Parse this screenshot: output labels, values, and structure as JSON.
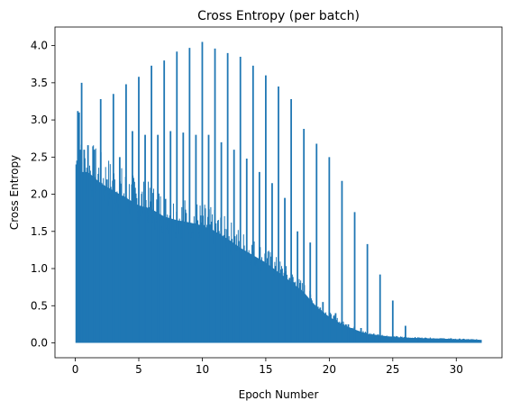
{
  "chart_data": {
    "type": "line",
    "title": "Cross Entropy (per batch)",
    "xlabel": "Epoch Number",
    "ylabel": "Cross Entropy",
    "xlim": [
      -1.6,
      33.6
    ],
    "ylim": [
      -0.2,
      4.25
    ],
    "xticks": [
      0,
      5,
      10,
      15,
      20,
      25,
      30
    ],
    "yticks": [
      0.0,
      0.5,
      1.0,
      1.5,
      2.0,
      2.5,
      3.0,
      3.5,
      4.0
    ],
    "ytick_labels": [
      "0.0",
      "0.5",
      "1.0",
      "1.5",
      "2.0",
      "2.5",
      "3.0",
      "3.5",
      "4.0"
    ],
    "grid": false,
    "line_color": "#1f77b4",
    "x_max": 32,
    "epoch_spikes": [
      {
        "x": 0.1,
        "y": 2.35
      },
      {
        "x": 0.2,
        "y": 3.12
      },
      {
        "x": 0.3,
        "y": 3.1
      },
      {
        "x": 0.4,
        "y": 2.6
      },
      {
        "x": 0.5,
        "y": 3.5
      },
      {
        "x": 0.7,
        "y": 2.6
      },
      {
        "x": 1,
        "y": 2.66
      },
      {
        "x": 1.5,
        "y": 2.6
      },
      {
        "x": 2,
        "y": 3.28
      },
      {
        "x": 2.5,
        "y": 2.2
      },
      {
        "x": 3,
        "y": 3.35
      },
      {
        "x": 3.5,
        "y": 2.5
      },
      {
        "x": 4,
        "y": 3.48
      },
      {
        "x": 4.5,
        "y": 2.85
      },
      {
        "x": 5,
        "y": 3.58
      },
      {
        "x": 5.5,
        "y": 2.8
      },
      {
        "x": 6,
        "y": 3.73
      },
      {
        "x": 6.5,
        "y": 2.8
      },
      {
        "x": 7,
        "y": 3.8
      },
      {
        "x": 7.5,
        "y": 2.85
      },
      {
        "x": 8,
        "y": 3.92
      },
      {
        "x": 8.5,
        "y": 2.83
      },
      {
        "x": 9,
        "y": 3.97
      },
      {
        "x": 9.5,
        "y": 2.8
      },
      {
        "x": 10,
        "y": 4.05
      },
      {
        "x": 10.5,
        "y": 2.8
      },
      {
        "x": 11,
        "y": 3.96
      },
      {
        "x": 11.5,
        "y": 2.7
      },
      {
        "x": 12,
        "y": 3.9
      },
      {
        "x": 12.5,
        "y": 2.6
      },
      {
        "x": 13,
        "y": 3.85
      },
      {
        "x": 13.5,
        "y": 2.48
      },
      {
        "x": 14,
        "y": 3.73
      },
      {
        "x": 14.5,
        "y": 2.3
      },
      {
        "x": 15,
        "y": 3.6
      },
      {
        "x": 15.5,
        "y": 2.15
      },
      {
        "x": 16,
        "y": 3.45
      },
      {
        "x": 16.5,
        "y": 1.95
      },
      {
        "x": 17,
        "y": 3.28
      },
      {
        "x": 17.5,
        "y": 1.5
      },
      {
        "x": 18,
        "y": 2.88
      },
      {
        "x": 18.5,
        "y": 1.35
      },
      {
        "x": 19,
        "y": 2.68
      },
      {
        "x": 19.5,
        "y": 0.55
      },
      {
        "x": 20,
        "y": 2.5
      },
      {
        "x": 20.5,
        "y": 0.4
      },
      {
        "x": 21,
        "y": 2.18
      },
      {
        "x": 21.5,
        "y": 0.25
      },
      {
        "x": 22,
        "y": 1.76
      },
      {
        "x": 22.5,
        "y": 0.2
      },
      {
        "x": 23,
        "y": 1.33
      },
      {
        "x": 23.5,
        "y": 0.12
      },
      {
        "x": 24,
        "y": 0.92
      },
      {
        "x": 25,
        "y": 0.57
      },
      {
        "x": 26,
        "y": 0.23
      },
      {
        "x": 27,
        "y": 0.07
      }
    ],
    "dense_band_upper": [
      [
        0.05,
        2.35
      ],
      [
        0.5,
        2.3
      ],
      [
        1,
        2.3
      ],
      [
        2,
        2.15
      ],
      [
        3,
        2.05
      ],
      [
        4,
        1.95
      ],
      [
        5,
        1.85
      ],
      [
        6,
        1.8
      ],
      [
        7,
        1.7
      ],
      [
        8,
        1.65
      ],
      [
        9,
        1.62
      ],
      [
        10,
        1.58
      ],
      [
        11,
        1.5
      ],
      [
        12,
        1.4
      ],
      [
        13,
        1.28
      ],
      [
        14,
        1.18
      ],
      [
        15,
        1.08
      ],
      [
        16,
        0.95
      ],
      [
        17,
        0.82
      ],
      [
        18,
        0.68
      ],
      [
        19,
        0.48
      ],
      [
        20,
        0.35
      ],
      [
        21,
        0.25
      ],
      [
        22,
        0.18
      ],
      [
        23,
        0.12
      ],
      [
        24,
        0.1
      ],
      [
        25,
        0.08
      ],
      [
        26,
        0.07
      ],
      [
        28,
        0.06
      ],
      [
        30,
        0.05
      ],
      [
        32,
        0.04
      ]
    ],
    "dense_band_lower": 0.0
  }
}
